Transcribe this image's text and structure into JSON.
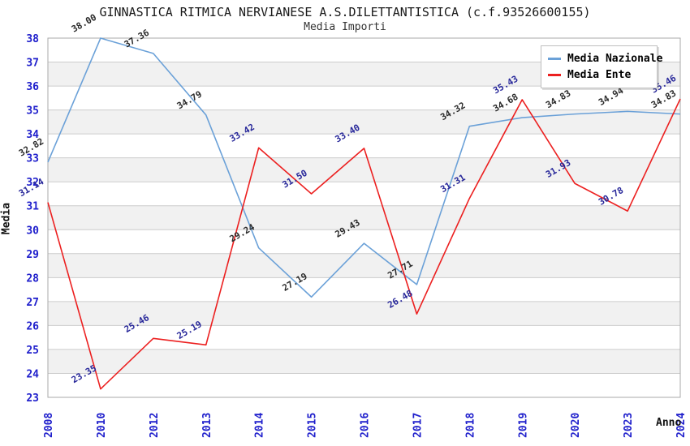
{
  "chart_data": {
    "type": "line",
    "title": "GINNASTICA RITMICA NERVIANESE A.S.DILETTANTISTICA (c.f.93526600155)",
    "subtitle": "Media Importi",
    "xlabel": "Anno",
    "ylabel": "Media",
    "categories": [
      "2008",
      "2010",
      "2012",
      "2013",
      "2014",
      "2015",
      "2016",
      "2017",
      "2018",
      "2019",
      "2020",
      "2023",
      "2024"
    ],
    "series": [
      {
        "name": "Media Nazionale",
        "color": "#6BA1D8",
        "label_color": "#2b2b2b",
        "values": [
          32.82,
          38.0,
          37.36,
          34.79,
          29.24,
          27.19,
          29.43,
          27.71,
          34.32,
          34.68,
          34.83,
          34.94,
          34.83
        ]
      },
      {
        "name": "Media Ente",
        "color": "#EC2020",
        "label_color": "#28289a",
        "values": [
          31.14,
          23.35,
          25.46,
          25.19,
          33.42,
          31.5,
          33.4,
          26.48,
          31.31,
          35.43,
          31.93,
          30.78,
          35.46
        ]
      }
    ],
    "ylim": [
      23,
      38
    ],
    "ytick_step": 1,
    "grid": true,
    "legend_position": "top-right",
    "colors": {
      "tick_label": "#2020CC",
      "grid_line": "#CCCCCC",
      "band_fill": "#F1F1F1",
      "frame": "#AAAAAA"
    }
  }
}
